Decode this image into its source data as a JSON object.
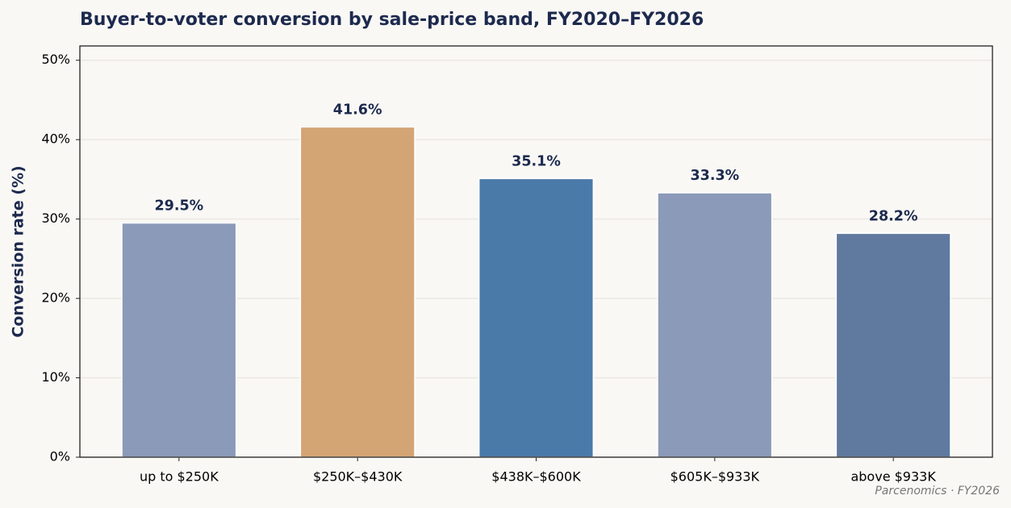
{
  "chart_data": {
    "type": "bar",
    "title": "Buyer-to-voter conversion by sale-price band, FY2020–FY2026",
    "y_label": "Conversion rate (%)",
    "footnote": "Parcenomics · FY2026",
    "categories": [
      "up to $250K",
      "$250K–$430K",
      "$438K–$600K",
      "$605K–$933K",
      "above $933K"
    ],
    "values": [
      29.5,
      41.6,
      35.1,
      33.3,
      28.2
    ],
    "value_labels": [
      "29.5%",
      "41.6%",
      "35.1%",
      "33.3%",
      "28.2%"
    ],
    "colors": [
      "#8b9ab8",
      "#d4a574",
      "#4a7aa8",
      "#8b9ab8",
      "#5f7a9e"
    ],
    "ylim": [
      0,
      51.8
    ],
    "yticks": [
      {
        "value": 0,
        "label": "0%"
      },
      {
        "value": 10,
        "label": "10%"
      },
      {
        "value": 20,
        "label": "20%"
      },
      {
        "value": 30,
        "label": "30%"
      },
      {
        "value": 40,
        "label": "40%"
      },
      {
        "value": 50,
        "label": "50%"
      }
    ],
    "grid": true
  }
}
